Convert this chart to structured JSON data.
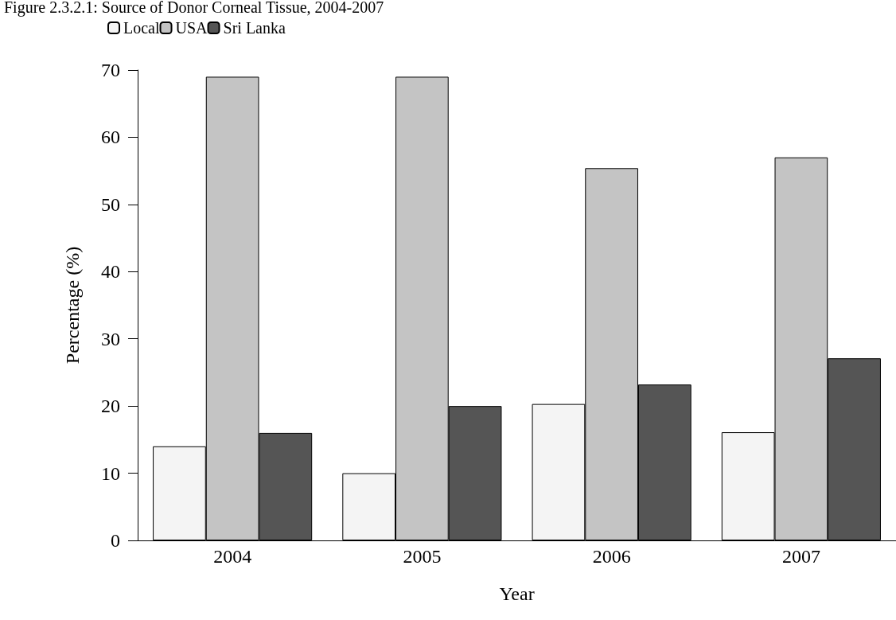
{
  "chart_data": {
    "type": "bar",
    "title": "Figure 2.3.2.1: Source of Donor Corneal Tissue, 2004-2007",
    "xlabel": "Year",
    "ylabel": "Percentage (%)",
    "categories": [
      "2004",
      "2005",
      "2006",
      "2007"
    ],
    "series": [
      {
        "name": "Local",
        "color": "#f4f4f4",
        "values": [
          14,
          10,
          20.3,
          16.1
        ]
      },
      {
        "name": "USA",
        "color": "#c4c4c4",
        "values": [
          69,
          69,
          55.4,
          57
        ]
      },
      {
        "name": "Sri Lanka",
        "color": "#555555",
        "values": [
          16,
          20,
          23.2,
          27.1
        ]
      }
    ],
    "ylim": [
      0,
      70
    ],
    "yticks": [
      0,
      10,
      20,
      30,
      40,
      50,
      60,
      70
    ],
    "grid": false,
    "legend": "top left"
  }
}
